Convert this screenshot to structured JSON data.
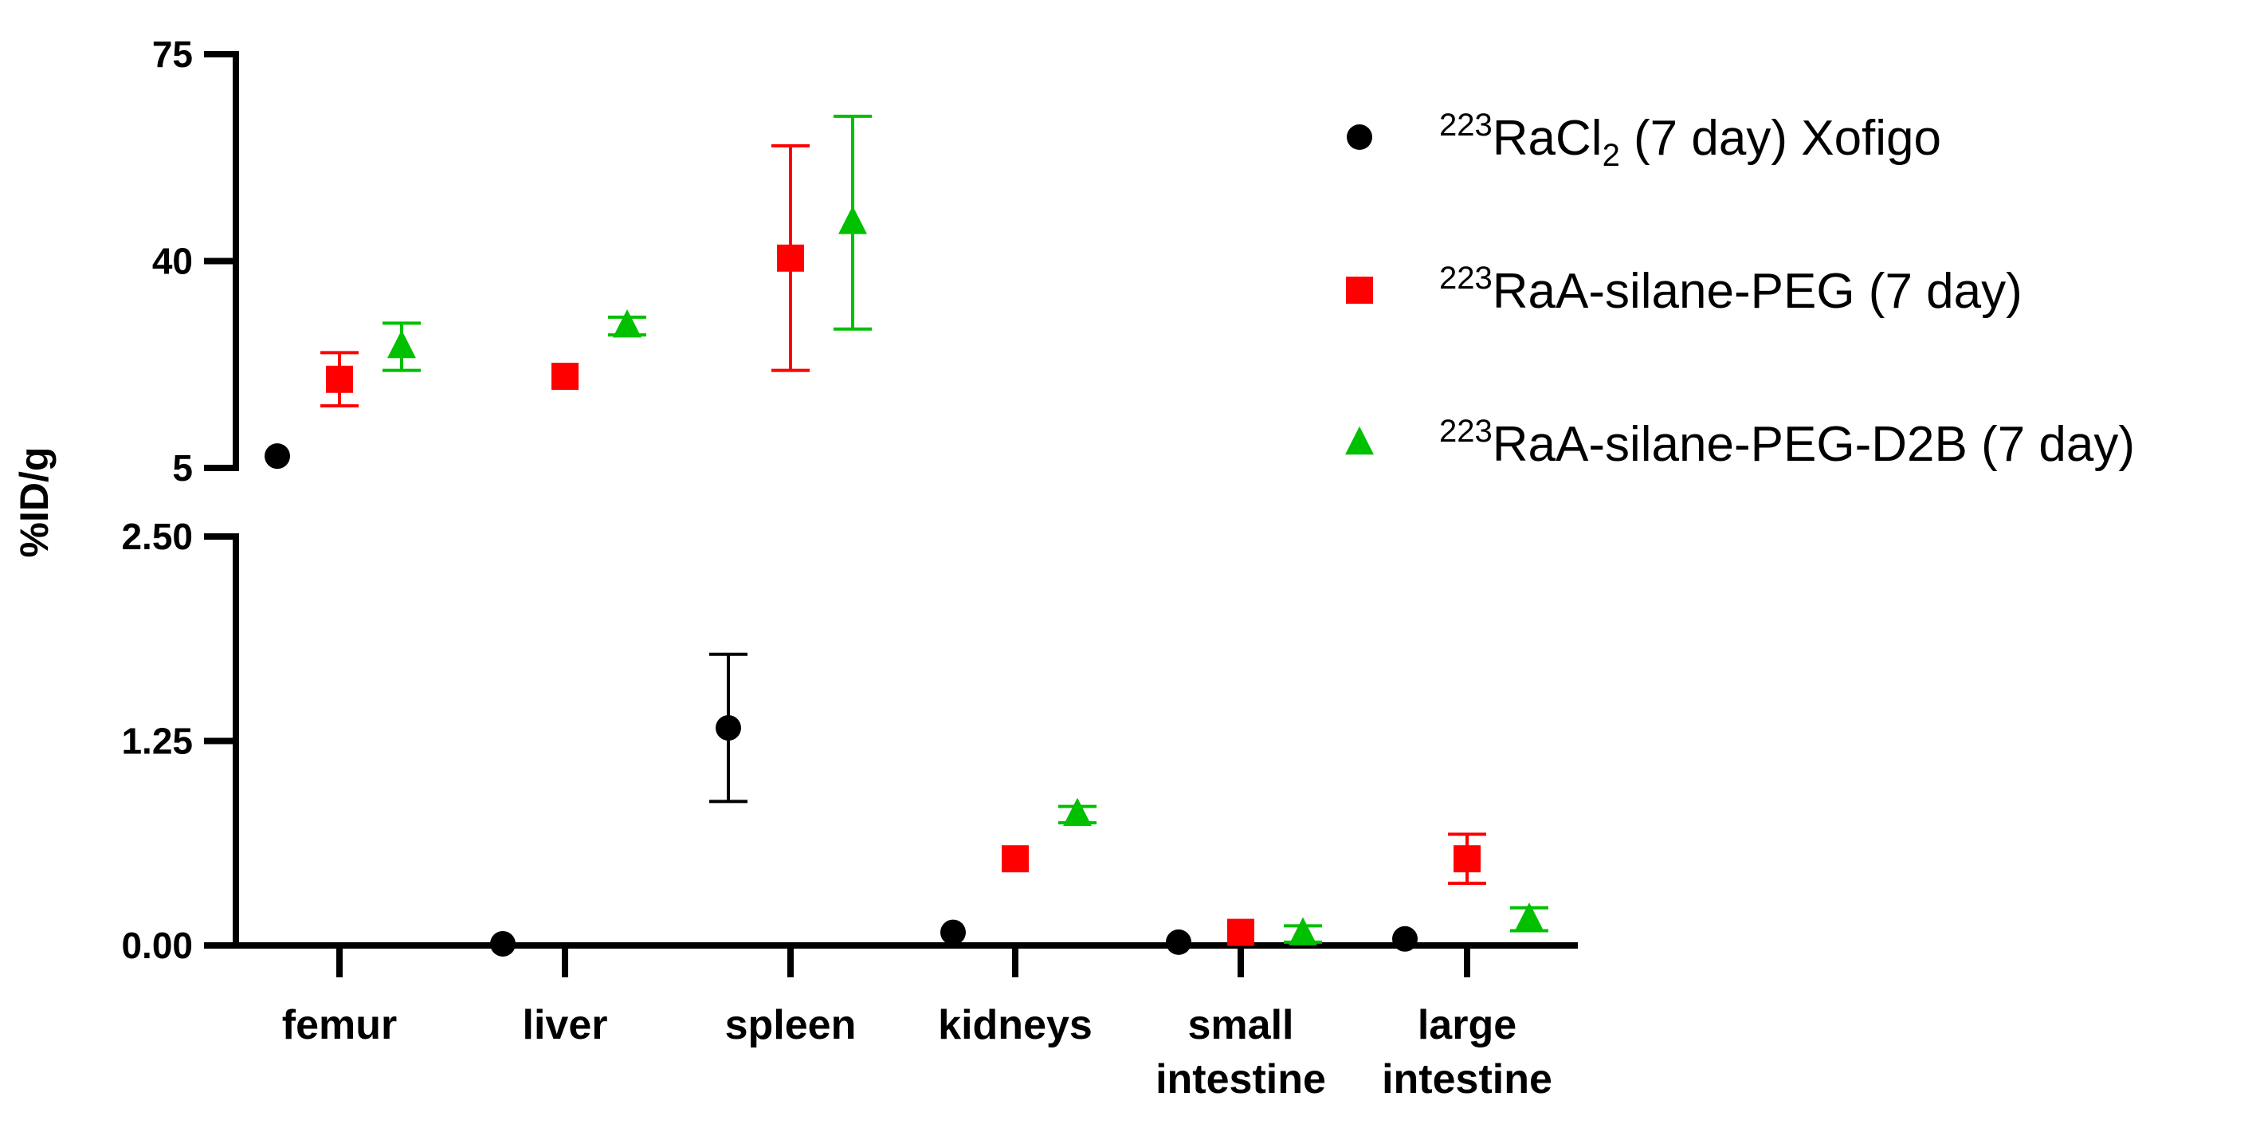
{
  "chart_data": {
    "type": "scatter",
    "ylabel": "%ID/g",
    "xlabel": "",
    "title": "",
    "grid": false,
    "y_axis_break": true,
    "y_segments": [
      {
        "name": "upper",
        "ylim": [
          5,
          75
        ],
        "ticks": [
          5,
          40,
          75
        ],
        "tick_labels": [
          "5",
          "40",
          "75"
        ]
      },
      {
        "name": "lower",
        "ylim": [
          0,
          2.5
        ],
        "ticks": [
          0,
          1.25,
          2.5
        ],
        "tick_labels": [
          "0.00",
          "1.25",
          "2.50"
        ]
      }
    ],
    "categories": [
      [
        "femur"
      ],
      [
        "liver"
      ],
      [
        "spleen"
      ],
      [
        "kidneys"
      ],
      [
        "small",
        "intestine"
      ],
      [
        "large",
        "intestine"
      ]
    ],
    "legend_position": "right",
    "series": [
      {
        "name_mass": "223",
        "name_base": "RaCl",
        "name_sub": "2",
        "name_rest": " (7 day) Xofigo",
        "marker": "circle",
        "color": "#000000",
        "values": [
          7,
          0.01,
          1.33,
          0.08,
          0.02,
          0.04
        ],
        "errors": [
          null,
          null,
          0.45,
          null,
          null,
          null
        ]
      },
      {
        "name_mass": "223",
        "name_base": "RaA-silane-PEG",
        "name_sub": "",
        "name_rest": " (7 day)",
        "marker": "square",
        "color": "#ff0000",
        "values": [
          20,
          20.5,
          40.5,
          0.53,
          0.08,
          0.53
        ],
        "errors": [
          4.5,
          null,
          19,
          null,
          null,
          0.15
        ]
      },
      {
        "name_mass": "223",
        "name_base": "RaA-silane-PEG-D2B",
        "name_sub": "",
        "name_rest": " (7 day)",
        "marker": "triangle",
        "color": "#00c000",
        "values": [
          25.5,
          29,
          46.5,
          0.8,
          0.07,
          0.16
        ],
        "errors": [
          4,
          1.5,
          18,
          0.05,
          0.05,
          0.07
        ]
      }
    ]
  }
}
